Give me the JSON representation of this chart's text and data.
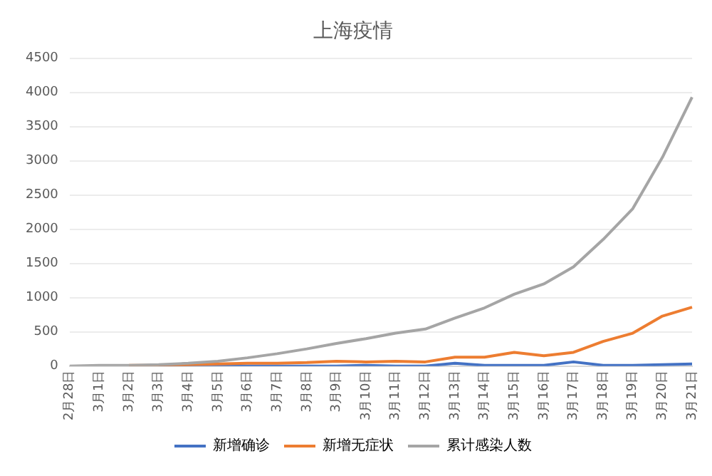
{
  "chart_data": {
    "type": "line",
    "title": "上海疫情",
    "categories": [
      "2月28日",
      "3月1日",
      "3月2日",
      "3月3日",
      "3月4日",
      "3月5日",
      "3月6日",
      "3月7日",
      "3月8日",
      "3月9日",
      "3月10日",
      "3月11日",
      "3月12日",
      "3月13日",
      "3月14日",
      "3月15日",
      "3月16日",
      "3月17日",
      "3月18日",
      "3月19日",
      "3月20日",
      "3月21日"
    ],
    "series": [
      {
        "name": "新增确诊",
        "color": "#4472c4",
        "values": [
          null,
          null,
          null,
          0,
          0,
          0,
          0,
          0,
          0,
          0,
          10,
          0,
          0,
          40,
          10,
          10,
          10,
          60,
          10,
          10,
          20,
          30
        ]
      },
      {
        "name": "新增无症状",
        "color": "#ed7d31",
        "values": [
          null,
          null,
          10,
          10,
          20,
          30,
          40,
          40,
          50,
          70,
          60,
          70,
          60,
          130,
          130,
          200,
          150,
          200,
          360,
          480,
          730,
          860
        ]
      },
      {
        "name": "累计感染人数",
        "color": "#a5a5a5",
        "values": [
          0,
          10,
          10,
          20,
          40,
          70,
          120,
          180,
          250,
          330,
          400,
          480,
          540,
          700,
          850,
          1050,
          1200,
          1450,
          1850,
          2300,
          3050,
          3930
        ]
      }
    ],
    "ylim": [
      0,
      4500
    ],
    "yticks": [
      0,
      500,
      1000,
      1500,
      2000,
      2500,
      3000,
      3500,
      4000,
      4500
    ],
    "grid": "y",
    "legend": "bottom",
    "marker": "none",
    "line_style": "solid"
  }
}
